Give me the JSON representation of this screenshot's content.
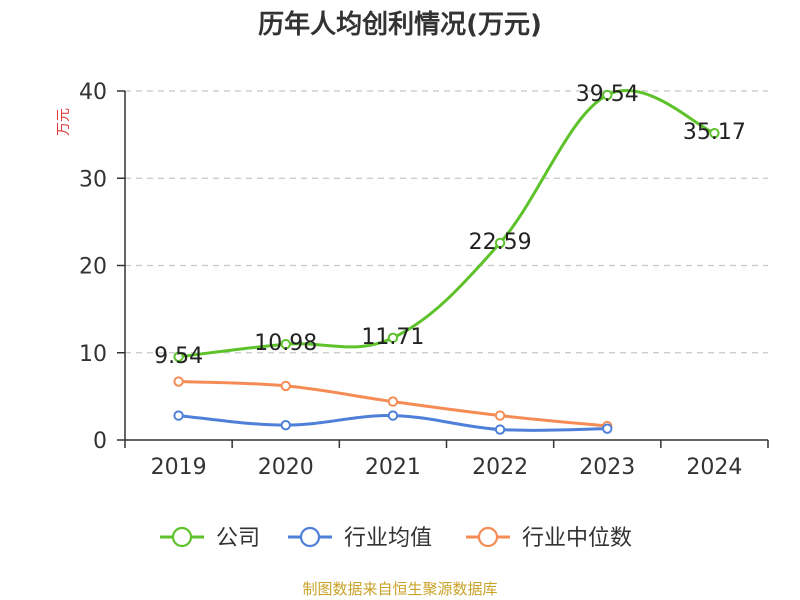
{
  "title": "历年人均创利情况(万元)",
  "source_note": "制图数据来自恒生聚源数据库",
  "chart_data": {
    "type": "line",
    "title": "历年人均创利情况(万元)",
    "xlabel": "",
    "ylabel": "万元",
    "categories": [
      "2019",
      "2020",
      "2021",
      "2022",
      "2023",
      "2024"
    ],
    "ylim": [
      0,
      40
    ],
    "yticks": [
      0,
      10,
      20,
      30,
      40
    ],
    "grid": true,
    "legend_position": "bottom",
    "series": [
      {
        "name": "公司",
        "color": "#5ec22b",
        "values": [
          9.54,
          10.98,
          11.71,
          22.59,
          39.54,
          35.17
        ],
        "show_labels": true
      },
      {
        "name": "行业均值",
        "color": "#4e7fd9",
        "values": [
          2.8,
          1.7,
          2.8,
          1.2,
          1.3,
          null
        ],
        "show_labels": false
      },
      {
        "name": "行业中位数",
        "color": "#f58c55",
        "values": [
          6.7,
          6.2,
          4.4,
          2.8,
          1.6,
          null
        ],
        "show_labels": false
      }
    ]
  }
}
